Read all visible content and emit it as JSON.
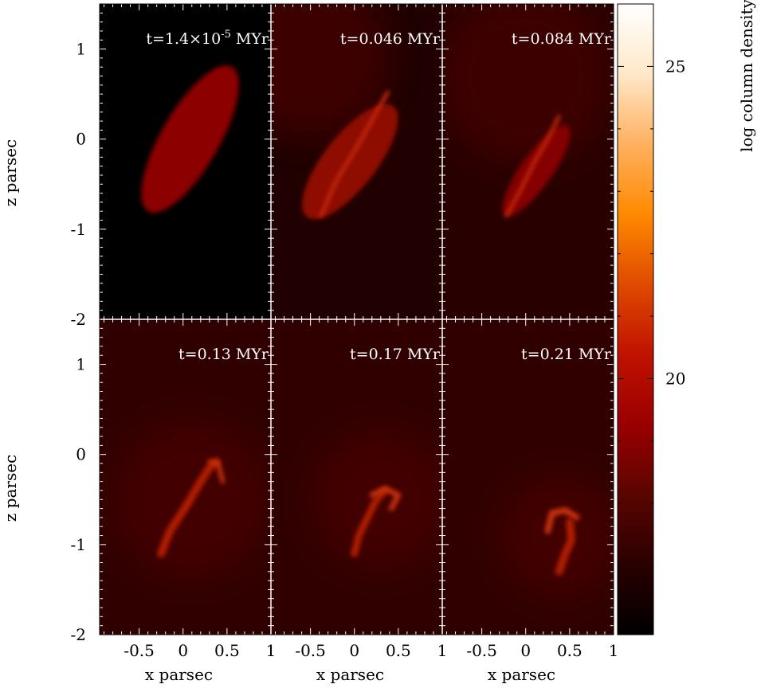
{
  "chart_data": {
    "type": "heatmap",
    "layout": "2 rows x 3 columns, shared axes",
    "xlabel": "x parsec",
    "ylabel": "z parsec",
    "xlim": [
      -0.95,
      1.0
    ],
    "ylim": [
      -2.0,
      1.5
    ],
    "x_ticks": [
      "-0.5",
      "0",
      "0.5",
      "1"
    ],
    "y_ticks": [
      "1",
      "0",
      "-1",
      "-2"
    ],
    "x_tick_values": [
      -0.5,
      0,
      0.5,
      1
    ],
    "y_tick_values": [
      1,
      0,
      -1,
      -2
    ],
    "colorbar": {
      "label": "log column density",
      "ticks": [
        "25",
        "20"
      ],
      "tick_values": [
        25,
        20
      ],
      "range": [
        15.9,
        26.0
      ],
      "colors": [
        "#000000",
        "#2a0000",
        "#5a0500",
        "#9a0000",
        "#c01200",
        "#e04a00",
        "#ff8a00",
        "#ffb060",
        "#ffe8c8",
        "#ffffff"
      ]
    },
    "panels": [
      {
        "label_prefix": "t=1.4×10",
        "label_sup": "-5",
        "label_suffix": " MYr",
        "background": "#000000",
        "glow_blobs": [],
        "ellipse": {
          "cx": 0.08,
          "cy": 0.0,
          "rx": 0.95,
          "ry": 0.33,
          "angle_deg": -60,
          "color": "#8c0604"
        },
        "filaments": []
      },
      {
        "label_prefix": "t=0.046 MYr",
        "label_sup": "",
        "label_suffix": "",
        "background": "#200000",
        "glow_blobs": [
          {
            "cx": -0.5,
            "cy": 0.9,
            "r": 0.9,
            "color": "#3e0200"
          }
        ],
        "ellipse": {
          "cx": -0.05,
          "cy": -0.25,
          "rx": 0.8,
          "ry": 0.3,
          "angle_deg": -52,
          "color": "#8e0a04"
        },
        "filaments": [
          {
            "points": [
              [
                -0.38,
                -0.85
              ],
              [
                -0.2,
                -0.45
              ],
              [
                0.05,
                -0.05
              ],
              [
                0.25,
                0.3
              ],
              [
                0.38,
                0.52
              ]
            ],
            "width": 0.045,
            "color": "#c42608"
          }
        ]
      },
      {
        "label_prefix": "t=0.084 MYr",
        "label_sup": "",
        "label_suffix": "",
        "background": "#280000",
        "glow_blobs": [
          {
            "cx": 0.0,
            "cy": 0.7,
            "r": 1.0,
            "color": "#3e0200"
          }
        ],
        "ellipse": {
          "cx": 0.12,
          "cy": -0.35,
          "rx": 0.62,
          "ry": 0.18,
          "angle_deg": -55,
          "color": "#850604"
        },
        "filaments": [
          {
            "points": [
              [
                -0.22,
                -0.85
              ],
              [
                -0.05,
                -0.55
              ],
              [
                0.1,
                -0.25
              ],
              [
                0.25,
                0.0
              ],
              [
                0.38,
                0.25
              ]
            ],
            "width": 0.04,
            "color": "#c82a08"
          }
        ]
      },
      {
        "label_prefix": "t=0.13 MYr",
        "label_sup": "",
        "label_suffix": "",
        "background": "#300000",
        "glow_blobs": [
          {
            "cx": 0.1,
            "cy": -0.5,
            "r": 0.9,
            "color": "#420300"
          }
        ],
        "ellipse": null,
        "filaments": [
          {
            "points": [
              [
                -0.25,
                -1.1
              ],
              [
                -0.15,
                -0.85
              ],
              [
                0.05,
                -0.55
              ],
              [
                0.2,
                -0.3
              ],
              [
                0.3,
                -0.15
              ],
              [
                0.38,
                -0.08
              ]
            ],
            "width": 0.09,
            "color": "#b01c06"
          },
          {
            "points": [
              [
                0.3,
                -0.08
              ],
              [
                0.4,
                -0.1
              ],
              [
                0.45,
                -0.3
              ]
            ],
            "width": 0.05,
            "color": "#c83008"
          }
        ]
      },
      {
        "label_prefix": "t=0.17 MYr",
        "label_sup": "",
        "label_suffix": "",
        "background": "#300000",
        "glow_blobs": [
          {
            "cx": 0.3,
            "cy": -0.5,
            "r": 0.8,
            "color": "#420300"
          }
        ],
        "ellipse": null,
        "filaments": [
          {
            "points": [
              [
                0.0,
                -1.1
              ],
              [
                0.05,
                -0.9
              ],
              [
                0.15,
                -0.7
              ],
              [
                0.25,
                -0.5
              ],
              [
                0.35,
                -0.4
              ]
            ],
            "width": 0.08,
            "color": "#b01c06"
          },
          {
            "points": [
              [
                0.2,
                -0.45
              ],
              [
                0.35,
                -0.38
              ],
              [
                0.5,
                -0.45
              ],
              [
                0.42,
                -0.6
              ]
            ],
            "width": 0.06,
            "color": "#c83008"
          }
        ]
      },
      {
        "label_prefix": "t=0.21 MYr",
        "label_sup": "",
        "label_suffix": "",
        "background": "#300000",
        "glow_blobs": [
          {
            "cx": 0.4,
            "cy": -0.9,
            "r": 0.7,
            "color": "#420300"
          }
        ],
        "ellipse": null,
        "filaments": [
          {
            "points": [
              [
                0.25,
                -0.85
              ],
              [
                0.3,
                -0.65
              ],
              [
                0.45,
                -0.62
              ],
              [
                0.58,
                -0.7
              ]
            ],
            "width": 0.07,
            "color": "#c83008"
          },
          {
            "points": [
              [
                0.5,
                -0.75
              ],
              [
                0.52,
                -0.95
              ],
              [
                0.45,
                -1.1
              ],
              [
                0.38,
                -1.3
              ]
            ],
            "width": 0.09,
            "color": "#b01c06"
          }
        ]
      }
    ]
  }
}
